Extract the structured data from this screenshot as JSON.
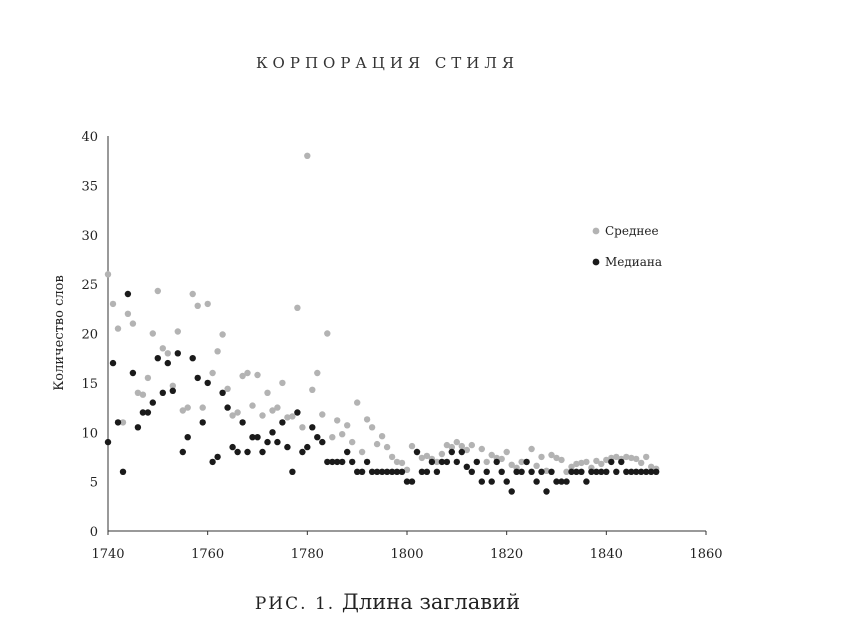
{
  "running_head": "КОРПОРАЦИЯ СТИЛЯ",
  "caption": {
    "prefix": "РИС. 1.",
    "text": "Длина заглавий"
  },
  "colors": {
    "mean": "#b3b3b3",
    "median": "#1a1a1a",
    "axis": "#333333"
  },
  "chart_data": {
    "type": "scatter",
    "xlabel": "",
    "ylabel": "Количество слов",
    "xlim": [
      1740,
      1860
    ],
    "ylim": [
      0,
      40
    ],
    "xticks": [
      1740,
      1760,
      1780,
      1800,
      1820,
      1840,
      1860
    ],
    "yticks": [
      0,
      5,
      10,
      15,
      20,
      25,
      30,
      35,
      40
    ],
    "legend_position": "right",
    "grid": false,
    "series": [
      {
        "name": "Среднее",
        "color": "#b3b3b3",
        "points": [
          [
            1740,
            26
          ],
          [
            1741,
            23
          ],
          [
            1742,
            20.5
          ],
          [
            1743,
            11
          ],
          [
            1744,
            22
          ],
          [
            1745,
            21
          ],
          [
            1746,
            14
          ],
          [
            1747,
            13.8
          ],
          [
            1748,
            15.5
          ],
          [
            1749,
            20
          ],
          [
            1750,
            24.3
          ],
          [
            1751,
            18.5
          ],
          [
            1752,
            18
          ],
          [
            1753,
            14.7
          ],
          [
            1754,
            20.2
          ],
          [
            1755,
            12.2
          ],
          [
            1756,
            12.5
          ],
          [
            1757,
            24
          ],
          [
            1758,
            22.8
          ],
          [
            1759,
            12.5
          ],
          [
            1760,
            23
          ],
          [
            1761,
            16
          ],
          [
            1762,
            18.2
          ],
          [
            1763,
            19.9
          ],
          [
            1764,
            14.4
          ],
          [
            1765,
            11.7
          ],
          [
            1766,
            12
          ],
          [
            1767,
            15.7
          ],
          [
            1768,
            16
          ],
          [
            1769,
            12.7
          ],
          [
            1770,
            15.8
          ],
          [
            1771,
            11.7
          ],
          [
            1772,
            14
          ],
          [
            1773,
            12.2
          ],
          [
            1774,
            12.5
          ],
          [
            1775,
            15
          ],
          [
            1776,
            11.5
          ],
          [
            1777,
            11.6
          ],
          [
            1778,
            22.6
          ],
          [
            1779,
            10.5
          ],
          [
            1780,
            38
          ],
          [
            1781,
            14.3
          ],
          [
            1782,
            16
          ],
          [
            1783,
            11.8
          ],
          [
            1784,
            20
          ],
          [
            1785,
            9.5
          ],
          [
            1786,
            11.2
          ],
          [
            1787,
            9.8
          ],
          [
            1788,
            10.7
          ],
          [
            1789,
            9
          ],
          [
            1790,
            13
          ],
          [
            1791,
            8
          ],
          [
            1792,
            11.3
          ],
          [
            1793,
            10.5
          ],
          [
            1794,
            8.8
          ],
          [
            1795,
            9.6
          ],
          [
            1796,
            8.5
          ],
          [
            1797,
            7.5
          ],
          [
            1798,
            7
          ],
          [
            1799,
            6.9
          ],
          [
            1800,
            6.2
          ],
          [
            1801,
            8.6
          ],
          [
            1802,
            8
          ],
          [
            1803,
            7.4
          ],
          [
            1804,
            7.6
          ],
          [
            1805,
            7.3
          ],
          [
            1806,
            7
          ],
          [
            1807,
            7.8
          ],
          [
            1808,
            8.7
          ],
          [
            1809,
            8.5
          ],
          [
            1810,
            9
          ],
          [
            1811,
            8.6
          ],
          [
            1812,
            8.2
          ],
          [
            1813,
            8.7
          ],
          [
            1814,
            7
          ],
          [
            1815,
            8.3
          ],
          [
            1816,
            7
          ],
          [
            1817,
            7.7
          ],
          [
            1818,
            7.4
          ],
          [
            1819,
            7.3
          ],
          [
            1820,
            8
          ],
          [
            1821,
            6.7
          ],
          [
            1822,
            6.4
          ],
          [
            1823,
            7
          ],
          [
            1824,
            7
          ],
          [
            1825,
            8.3
          ],
          [
            1826,
            6.6
          ],
          [
            1827,
            7.5
          ],
          [
            1828,
            6.1
          ],
          [
            1829,
            7.7
          ],
          [
            1830,
            7.4
          ],
          [
            1831,
            7.2
          ],
          [
            1832,
            6
          ],
          [
            1833,
            6.5
          ],
          [
            1834,
            6.8
          ],
          [
            1835,
            6.9
          ],
          [
            1836,
            7
          ],
          [
            1837,
            6.4
          ],
          [
            1838,
            7.1
          ],
          [
            1839,
            6.8
          ],
          [
            1840,
            7.2
          ],
          [
            1841,
            7.4
          ],
          [
            1842,
            7.5
          ],
          [
            1843,
            7.3
          ],
          [
            1844,
            7.5
          ],
          [
            1845,
            7.4
          ],
          [
            1846,
            7.3
          ],
          [
            1847,
            6.9
          ],
          [
            1848,
            7.5
          ],
          [
            1849,
            6.5
          ],
          [
            1850,
            6.3
          ]
        ]
      },
      {
        "name": "Медиана",
        "color": "#1a1a1a",
        "points": [
          [
            1740,
            9
          ],
          [
            1741,
            17
          ],
          [
            1742,
            11
          ],
          [
            1743,
            6
          ],
          [
            1744,
            24
          ],
          [
            1745,
            16
          ],
          [
            1746,
            10.5
          ],
          [
            1747,
            12
          ],
          [
            1748,
            12
          ],
          [
            1749,
            13
          ],
          [
            1750,
            17.5
          ],
          [
            1751,
            14
          ],
          [
            1752,
            17
          ],
          [
            1753,
            14.2
          ],
          [
            1754,
            18
          ],
          [
            1755,
            8
          ],
          [
            1756,
            9.5
          ],
          [
            1757,
            17.5
          ],
          [
            1758,
            15.5
          ],
          [
            1759,
            11
          ],
          [
            1760,
            15
          ],
          [
            1761,
            7
          ],
          [
            1762,
            7.5
          ],
          [
            1763,
            14
          ],
          [
            1764,
            12.5
          ],
          [
            1765,
            8.5
          ],
          [
            1766,
            8
          ],
          [
            1767,
            11
          ],
          [
            1768,
            8
          ],
          [
            1769,
            9.5
          ],
          [
            1770,
            9.5
          ],
          [
            1771,
            8
          ],
          [
            1772,
            9
          ],
          [
            1773,
            10
          ],
          [
            1774,
            9
          ],
          [
            1775,
            11
          ],
          [
            1776,
            8.5
          ],
          [
            1777,
            6
          ],
          [
            1778,
            12
          ],
          [
            1779,
            8
          ],
          [
            1780,
            8.5
          ],
          [
            1781,
            10.5
          ],
          [
            1782,
            9.5
          ],
          [
            1783,
            9
          ],
          [
            1784,
            7
          ],
          [
            1785,
            7
          ],
          [
            1786,
            7
          ],
          [
            1787,
            7
          ],
          [
            1788,
            8
          ],
          [
            1789,
            7
          ],
          [
            1790,
            6
          ],
          [
            1791,
            6
          ],
          [
            1792,
            7
          ],
          [
            1793,
            6
          ],
          [
            1794,
            6
          ],
          [
            1795,
            6
          ],
          [
            1796,
            6
          ],
          [
            1797,
            6
          ],
          [
            1798,
            6
          ],
          [
            1799,
            6
          ],
          [
            1800,
            5
          ],
          [
            1801,
            5
          ],
          [
            1802,
            8
          ],
          [
            1803,
            6
          ],
          [
            1804,
            6
          ],
          [
            1805,
            7
          ],
          [
            1806,
            6
          ],
          [
            1807,
            7
          ],
          [
            1808,
            7
          ],
          [
            1809,
            8
          ],
          [
            1810,
            7
          ],
          [
            1811,
            8
          ],
          [
            1812,
            6.5
          ],
          [
            1813,
            6
          ],
          [
            1814,
            7
          ],
          [
            1815,
            5
          ],
          [
            1816,
            6
          ],
          [
            1817,
            5
          ],
          [
            1818,
            7
          ],
          [
            1819,
            6
          ],
          [
            1820,
            5
          ],
          [
            1821,
            4
          ],
          [
            1822,
            6
          ],
          [
            1823,
            6
          ],
          [
            1824,
            7
          ],
          [
            1825,
            6
          ],
          [
            1826,
            5
          ],
          [
            1827,
            6
          ],
          [
            1828,
            4
          ],
          [
            1829,
            6
          ],
          [
            1830,
            5
          ],
          [
            1831,
            5
          ],
          [
            1832,
            5
          ],
          [
            1833,
            6
          ],
          [
            1834,
            6
          ],
          [
            1835,
            6
          ],
          [
            1836,
            5
          ],
          [
            1837,
            6
          ],
          [
            1838,
            6
          ],
          [
            1839,
            6
          ],
          [
            1840,
            6
          ],
          [
            1841,
            7
          ],
          [
            1842,
            6
          ],
          [
            1843,
            7
          ],
          [
            1844,
            6
          ],
          [
            1845,
            6
          ],
          [
            1846,
            6
          ],
          [
            1847,
            6
          ],
          [
            1848,
            6
          ],
          [
            1849,
            6
          ],
          [
            1850,
            6
          ]
        ]
      }
    ]
  }
}
